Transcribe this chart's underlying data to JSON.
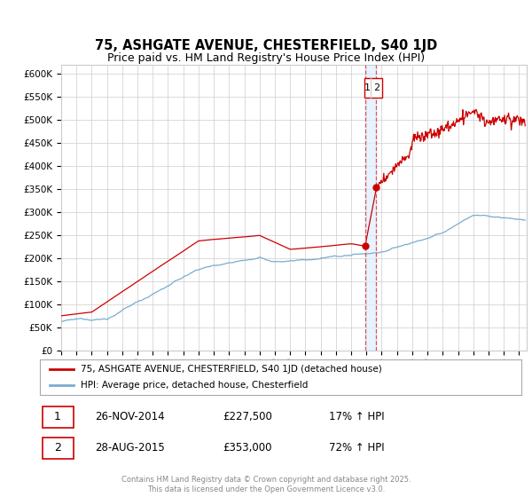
{
  "title": "75, ASHGATE AVENUE, CHESTERFIELD, S40 1JD",
  "subtitle": "Price paid vs. HM Land Registry's House Price Index (HPI)",
  "title_fontsize": 10.5,
  "subtitle_fontsize": 9,
  "background_color": "#ffffff",
  "plot_bg_color": "#ffffff",
  "grid_color": "#cccccc",
  "red_line_color": "#cc0000",
  "blue_line_color": "#7aadce",
  "shaded_color": "#ddeeff",
  "legend_label_red": "75, ASHGATE AVENUE, CHESTERFIELD, S40 1JD (detached house)",
  "legend_label_blue": "HPI: Average price, detached house, Chesterfield",
  "transaction1_date": "26-NOV-2014",
  "transaction1_price": "£227,500",
  "transaction1_hpi": "17% ↑ HPI",
  "transaction2_date": "28-AUG-2015",
  "transaction2_price": "£353,000",
  "transaction2_hpi": "72% ↑ HPI",
  "vline1_x": 2014.9,
  "vline2_x": 2015.65,
  "vline_color": "#dd4444",
  "marker1_x": 2014.9,
  "marker1_y": 227500,
  "marker2_x": 2015.65,
  "marker2_y": 353000,
  "ylim": [
    0,
    620000
  ],
  "xlim_start": 1995,
  "xlim_end": 2025.5,
  "copyright_text": "Contains HM Land Registry data © Crown copyright and database right 2025.\nThis data is licensed under the Open Government Licence v3.0."
}
